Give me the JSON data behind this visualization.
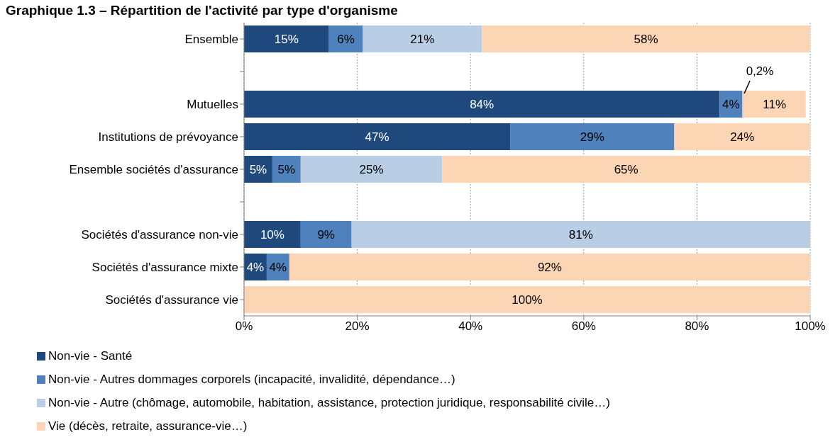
{
  "chart_data": {
    "type": "bar",
    "orientation": "horizontal",
    "stacked": true,
    "title": "Graphique 1.3 – Répartition de l'activité par type d'organisme",
    "categories": [
      "Ensemble",
      null,
      "Mutuelles",
      "Institutions de prévoyance",
      "Ensemble sociétés d'assurance",
      null,
      "Sociétés d'assurance non-vie",
      "Sociétés d'assurance mixte",
      "Sociétés d'assurance vie"
    ],
    "series": [
      {
        "name": "Non-vie - Santé",
        "color": "#1f497d",
        "values": [
          15,
          null,
          84,
          47,
          5,
          null,
          10,
          4,
          0
        ],
        "value_labels": [
          "15%",
          null,
          "84%",
          "47%",
          "5%",
          null,
          "10%",
          "4%",
          null
        ]
      },
      {
        "name": "Non-vie - Autres dommages corporels (incapacité, invalidité, dépendance…)",
        "color": "#4f81bd",
        "values": [
          6,
          null,
          4,
          29,
          5,
          null,
          9,
          4,
          0
        ],
        "value_labels": [
          "6%",
          null,
          "4%",
          "29%",
          "5%",
          null,
          "9%",
          "4%",
          null
        ]
      },
      {
        "name": "Non-vie - Autre (chômage, automobile, habitation, assistance, protection juridique, responsabilité civile…)",
        "color": "#b9cde5",
        "values": [
          21,
          null,
          0.2,
          0,
          25,
          null,
          81,
          0,
          0
        ],
        "value_labels": [
          "21%",
          null,
          "0,2%",
          null,
          "25%",
          null,
          "81%",
          null,
          null
        ]
      },
      {
        "name": "Vie (décès, retraite,  assurance-vie…)",
        "color": "#fcd5b5",
        "values": [
          58,
          null,
          11,
          24,
          65,
          null,
          0,
          92,
          100
        ],
        "value_labels": [
          "58%",
          null,
          "11%",
          "24%",
          "65%",
          null,
          null,
          "92%",
          "100%"
        ]
      }
    ],
    "xlim": [
      0,
      100
    ],
    "xticks": [
      {
        "value": 0,
        "label": "0%"
      },
      {
        "value": 20,
        "label": "20%"
      },
      {
        "value": 40,
        "label": "40%"
      },
      {
        "value": 60,
        "label": "60%"
      },
      {
        "value": 80,
        "label": "80%"
      },
      {
        "value": 100,
        "label": "100%"
      }
    ],
    "grid": "x",
    "legend": "bottom"
  }
}
